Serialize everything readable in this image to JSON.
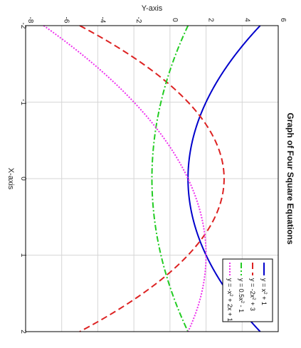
{
  "chart_data": {
    "type": "line",
    "title": "Graph of Four Square Equations",
    "xlabel": "X-axis",
    "ylabel": "Y-axis",
    "xlim": [
      -2,
      2
    ],
    "ylim": [
      -8,
      6
    ],
    "x_ticks": [
      -2,
      -1,
      0,
      1,
      2
    ],
    "y_ticks": [
      -8,
      -6,
      -4,
      -2,
      0,
      2,
      4,
      6
    ],
    "grid": true,
    "legend_position": "bottom-right",
    "orientation": "rotated-90-clockwise",
    "series": [
      {
        "name": "y = x² + 1",
        "label_base": "y = x",
        "label_sup": "2",
        "label_tail": " + 1",
        "color": "#0000cc",
        "style": "solid",
        "coeffs": [
          1,
          0,
          1
        ],
        "x": [
          -2,
          -1.5,
          -1,
          -0.5,
          0,
          0.5,
          1,
          1.5,
          2
        ],
        "y": [
          5,
          3.25,
          2,
          1.25,
          1,
          1.25,
          2,
          3.25,
          5
        ]
      },
      {
        "name": "y = -2x² + 3",
        "label_base": "y = -2x",
        "label_sup": "2",
        "label_tail": " + 3",
        "color": "#dd2222",
        "style": "dashed",
        "coeffs": [
          -2,
          0,
          3
        ],
        "x": [
          -2,
          -1.5,
          -1,
          -0.5,
          0,
          0.5,
          1,
          1.5,
          2
        ],
        "y": [
          -5,
          -1.5,
          1,
          2.5,
          3,
          2.5,
          1,
          -1.5,
          -5
        ]
      },
      {
        "name": "y = 0.5x² - 1",
        "label_base": "y = 0.5x",
        "label_sup": "2",
        "label_tail": " - 1",
        "color": "#22cc22",
        "style": "dashdot",
        "coeffs": [
          0.5,
          0,
          -1
        ],
        "x": [
          -2,
          -1.5,
          -1,
          -0.5,
          0,
          0.5,
          1,
          1.5,
          2
        ],
        "y": [
          1,
          0.125,
          -0.5,
          -0.875,
          -1,
          -0.875,
          -0.5,
          0.125,
          1
        ]
      },
      {
        "name": "y = -x² + 2x + 1",
        "label_base": "y = -x",
        "label_sup": "2",
        "label_tail": " + 2x + 1",
        "color": "#ee33ee",
        "style": "dotted",
        "coeffs": [
          -1,
          2,
          1
        ],
        "x": [
          -2,
          -1.5,
          -1,
          -0.5,
          0,
          0.5,
          1,
          1.5,
          2
        ],
        "y": [
          -7,
          -4.25,
          -2,
          -0.25,
          1,
          1.75,
          2,
          1.75,
          1
        ]
      }
    ]
  }
}
